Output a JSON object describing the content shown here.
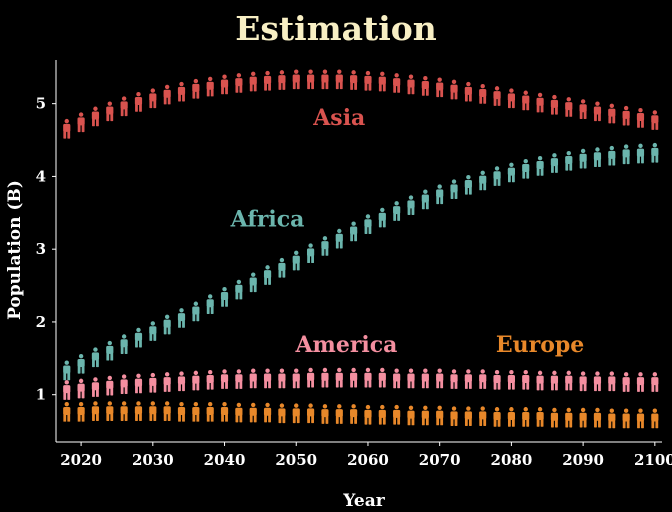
{
  "chart_data": {
    "type": "scatter",
    "marker": "person-icon",
    "title": "Estimation",
    "xlabel": "Year",
    "ylabel": "Population (B)",
    "xlim": [
      2016.5,
      2101
    ],
    "ylim": [
      0.35,
      5.6
    ],
    "xticks": [
      2020,
      2030,
      2040,
      2050,
      2060,
      2070,
      2080,
      2090,
      2100
    ],
    "yticks": [
      1,
      2,
      3,
      4,
      5
    ],
    "grid": false,
    "x": [
      2018,
      2020,
      2022,
      2024,
      2026,
      2028,
      2030,
      2032,
      2034,
      2036,
      2038,
      2040,
      2042,
      2044,
      2046,
      2048,
      2050,
      2052,
      2054,
      2056,
      2058,
      2060,
      2062,
      2064,
      2066,
      2068,
      2070,
      2072,
      2074,
      2076,
      2078,
      2080,
      2082,
      2084,
      2086,
      2088,
      2090,
      2092,
      2094,
      2096,
      2098,
      2100
    ],
    "series": [
      {
        "name": "Asia",
        "color": "#d9534f",
        "label_at": [
          2056,
          4.82
        ],
        "values": [
          4.65,
          4.74,
          4.82,
          4.89,
          4.96,
          5.02,
          5.07,
          5.12,
          5.16,
          5.2,
          5.23,
          5.26,
          5.28,
          5.3,
          5.31,
          5.32,
          5.33,
          5.33,
          5.33,
          5.33,
          5.32,
          5.31,
          5.3,
          5.28,
          5.26,
          5.24,
          5.22,
          5.19,
          5.16,
          5.13,
          5.1,
          5.07,
          5.04,
          5.01,
          4.98,
          4.95,
          4.92,
          4.89,
          4.86,
          4.83,
          4.8,
          4.77
        ]
      },
      {
        "name": "Africa",
        "color": "#6bb5ad",
        "label_at": [
          2046,
          3.42
        ],
        "values": [
          1.33,
          1.42,
          1.51,
          1.6,
          1.69,
          1.78,
          1.87,
          1.96,
          2.05,
          2.14,
          2.24,
          2.34,
          2.44,
          2.54,
          2.64,
          2.74,
          2.84,
          2.94,
          3.04,
          3.14,
          3.24,
          3.34,
          3.43,
          3.52,
          3.6,
          3.68,
          3.75,
          3.82,
          3.88,
          3.94,
          4.0,
          4.05,
          4.1,
          4.14,
          4.18,
          4.21,
          4.24,
          4.26,
          4.28,
          4.3,
          4.31,
          4.32
        ]
      },
      {
        "name": "America",
        "color": "#f48fa0",
        "label_at": [
          2057,
          1.7
        ],
        "values": [
          1.06,
          1.08,
          1.1,
          1.12,
          1.14,
          1.15,
          1.16,
          1.17,
          1.18,
          1.19,
          1.2,
          1.21,
          1.21,
          1.22,
          1.22,
          1.22,
          1.22,
          1.23,
          1.23,
          1.23,
          1.23,
          1.23,
          1.23,
          1.22,
          1.22,
          1.22,
          1.22,
          1.21,
          1.21,
          1.21,
          1.2,
          1.2,
          1.2,
          1.19,
          1.19,
          1.19,
          1.18,
          1.18,
          1.18,
          1.17,
          1.17,
          1.17
        ]
      },
      {
        "name": "Europe",
        "color": "#e8882a",
        "label_at": [
          2084,
          1.7
        ],
        "values": [
          0.76,
          0.76,
          0.77,
          0.77,
          0.77,
          0.77,
          0.77,
          0.77,
          0.76,
          0.76,
          0.76,
          0.76,
          0.75,
          0.75,
          0.75,
          0.74,
          0.74,
          0.74,
          0.73,
          0.73,
          0.73,
          0.72,
          0.72,
          0.72,
          0.71,
          0.71,
          0.71,
          0.7,
          0.7,
          0.7,
          0.69,
          0.69,
          0.69,
          0.69,
          0.68,
          0.68,
          0.68,
          0.68,
          0.67,
          0.67,
          0.67,
          0.67
        ]
      }
    ]
  }
}
